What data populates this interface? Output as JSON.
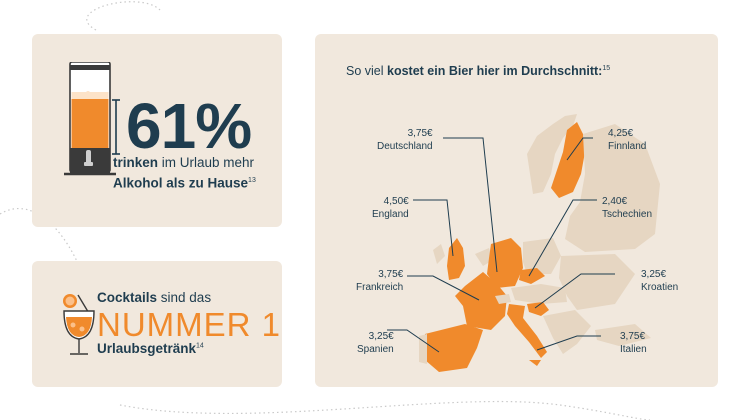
{
  "stat_card": {
    "percent": "61%",
    "line1_bold": "trinken",
    "line1_rest": " im Urlaub mehr",
    "line2": "Alkohol als zu Hause",
    "footnote": "13",
    "beer_fill_level": 0.5
  },
  "cocktail_card": {
    "line1_bold": "Cocktails",
    "line1_rest": " sind das",
    "headline": "NUMMER 1",
    "line3": "Urlaubsgetränk",
    "footnote": "14"
  },
  "map_card": {
    "title_pre": "So viel ",
    "title_bold": "kostet ein Bier hier im Durchschnitt:",
    "footnote": "15",
    "countries": [
      {
        "price": "3,75€",
        "name": "Deutschland"
      },
      {
        "price": "4,25€",
        "name": "Finnland"
      },
      {
        "price": "4,50€",
        "name": "England"
      },
      {
        "price": "2,40€",
        "name": "Tschechien"
      },
      {
        "price": "3,75€",
        "name": "Frankreich"
      },
      {
        "price": "3,25€",
        "name": "Kroatien"
      },
      {
        "price": "3,25€",
        "name": "Spanien"
      },
      {
        "price": "3,75€",
        "name": "Italien"
      }
    ]
  },
  "colors": {
    "card_bg": "#f1e8dd",
    "accent_orange": "#f08a2c",
    "text_navy": "#1f3d4f",
    "land_beige": "#e6d6c2"
  }
}
